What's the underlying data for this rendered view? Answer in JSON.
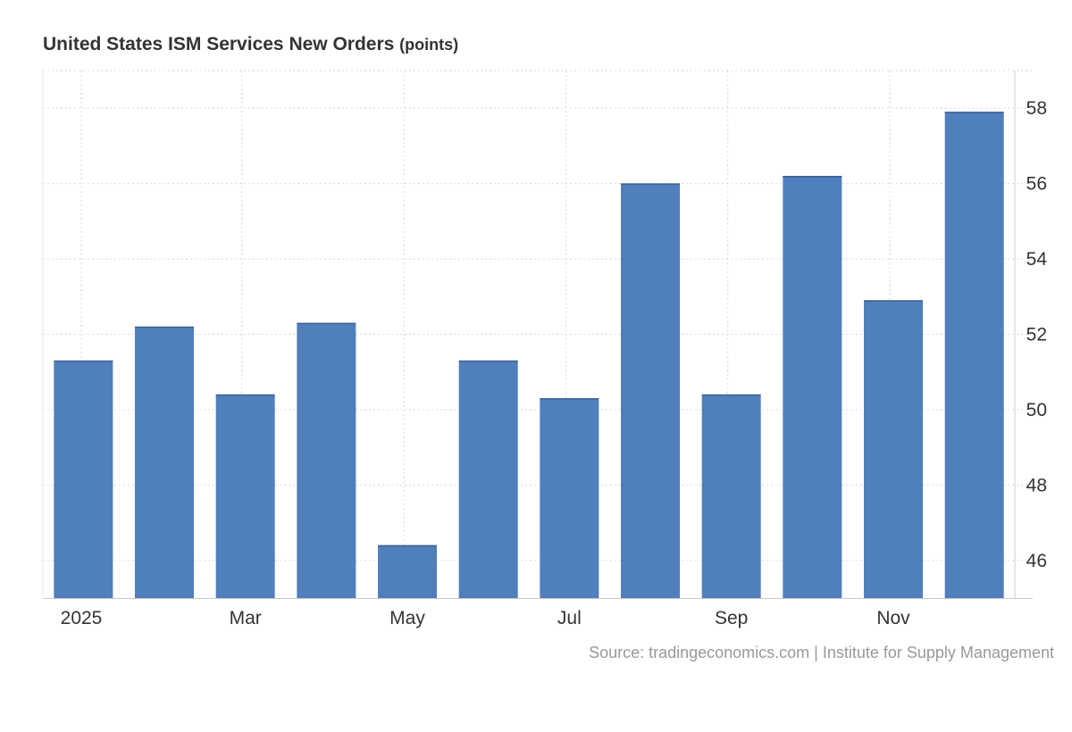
{
  "chart_data": {
    "type": "bar",
    "title": "United States ISM Services New Orders",
    "unit": "(points)",
    "categories": [
      "Jan 2025",
      "Feb 2025",
      "Mar 2025",
      "Apr 2025",
      "May 2025",
      "Jun 2025",
      "Jul 2025",
      "Aug 2025",
      "Sep 2025",
      "Oct 2025",
      "Nov 2025",
      "Dec 2025"
    ],
    "values": [
      51.3,
      52.2,
      50.4,
      52.3,
      46.4,
      51.3,
      50.3,
      56.0,
      50.4,
      56.2,
      52.9,
      57.9
    ],
    "x_tick_labels": [
      "2025",
      "",
      "Mar",
      "",
      "May",
      "",
      "Jul",
      "",
      "Sep",
      "",
      "Nov",
      ""
    ],
    "y_ticks": [
      46,
      48,
      50,
      52,
      54,
      56,
      58
    ],
    "ylim": [
      45,
      59
    ],
    "y_axis_side": "right",
    "grid": true,
    "bar_color": "#4f7fbd",
    "source": "Source: tradingeconomics.com | Institute for Supply Management"
  }
}
